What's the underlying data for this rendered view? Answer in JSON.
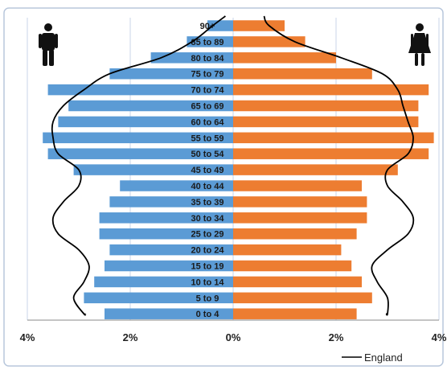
{
  "chart_data": {
    "type": "bar",
    "orientation": "horizontal",
    "subtype": "population-pyramid",
    "categories": [
      "90+",
      "85 to 89",
      "80 to 84",
      "75 to 79",
      "70 to 74",
      "65 to 69",
      "60 to 64",
      "55 to 59",
      "50 to 54",
      "45 to 49",
      "40 to 44",
      "35 to 39",
      "30 to 34",
      "25 to 29",
      "20 to 24",
      "15 to 19",
      "10 to 14",
      "5 to 9",
      "0 to 4"
    ],
    "series": [
      {
        "side": "left",
        "color": "#5b9bd5",
        "values": [
          0.5,
          0.9,
          1.6,
          2.4,
          3.6,
          3.2,
          3.4,
          3.7,
          3.6,
          3.1,
          2.2,
          2.4,
          2.6,
          2.6,
          2.4,
          2.5,
          2.7,
          2.9,
          2.5
        ]
      },
      {
        "side": "right",
        "color": "#ed7d31",
        "values": [
          1.0,
          1.4,
          2.0,
          2.7,
          3.8,
          3.6,
          3.6,
          3.9,
          3.8,
          3.2,
          2.5,
          2.6,
          2.6,
          2.4,
          2.1,
          2.3,
          2.5,
          2.7,
          2.4
        ]
      },
      {
        "name": "England",
        "type": "line",
        "color": "#000000",
        "left_values": [
          0.4,
          0.8,
          1.4,
          2.4,
          2.9,
          3.3,
          3.5,
          3.5,
          3.4,
          3.0,
          3.0,
          3.3,
          3.5,
          3.4,
          3.0,
          2.8,
          2.9,
          3.1,
          2.9
        ],
        "right_values": [
          0.7,
          1.2,
          2.1,
          2.9,
          3.2,
          3.3,
          3.4,
          3.5,
          3.4,
          3.0,
          3.0,
          3.3,
          3.5,
          3.4,
          3.0,
          2.7,
          2.8,
          3.0,
          3.0
        ]
      }
    ],
    "x_ticks": [
      "4%",
      "2%",
      "0%",
      "2%",
      "4%"
    ],
    "xlim": [
      -4,
      4
    ],
    "grid": "vertical",
    "legend": "bottom-right",
    "legend_label": "England",
    "icons": {
      "left": "male-figure-icon",
      "right": "female-figure-icon"
    }
  }
}
